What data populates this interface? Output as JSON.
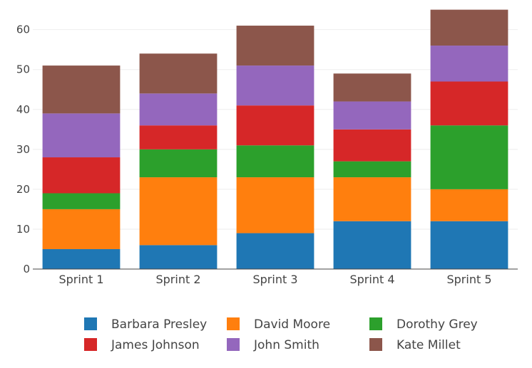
{
  "chart_data": {
    "type": "bar",
    "stacked": true,
    "title": "",
    "xlabel": "",
    "ylabel": "",
    "ylim": [
      0,
      66
    ],
    "yticks": [
      0,
      10,
      20,
      30,
      40,
      50,
      60
    ],
    "grid": true,
    "legend_position": "bottom",
    "categories": [
      "Sprint 1",
      "Sprint 2",
      "Sprint 3",
      "Sprint 4",
      "Sprint 5"
    ],
    "series": [
      {
        "name": "Barbara Presley",
        "color": "#1f77b4",
        "values": [
          5,
          6,
          9,
          12,
          12
        ]
      },
      {
        "name": "David Moore",
        "color": "#ff7f0e",
        "values": [
          10,
          17,
          14,
          11,
          8
        ]
      },
      {
        "name": "Dorothy Grey",
        "color": "#2ca02c",
        "values": [
          4,
          7,
          8,
          4,
          16
        ]
      },
      {
        "name": "James Johnson",
        "color": "#d62728",
        "values": [
          9,
          6,
          10,
          8,
          11
        ]
      },
      {
        "name": "John Smith",
        "color": "#9467bd",
        "values": [
          11,
          8,
          10,
          7,
          9
        ]
      },
      {
        "name": "Kate Millet",
        "color": "#8c564b",
        "values": [
          12,
          10,
          10,
          7,
          9
        ]
      }
    ]
  }
}
